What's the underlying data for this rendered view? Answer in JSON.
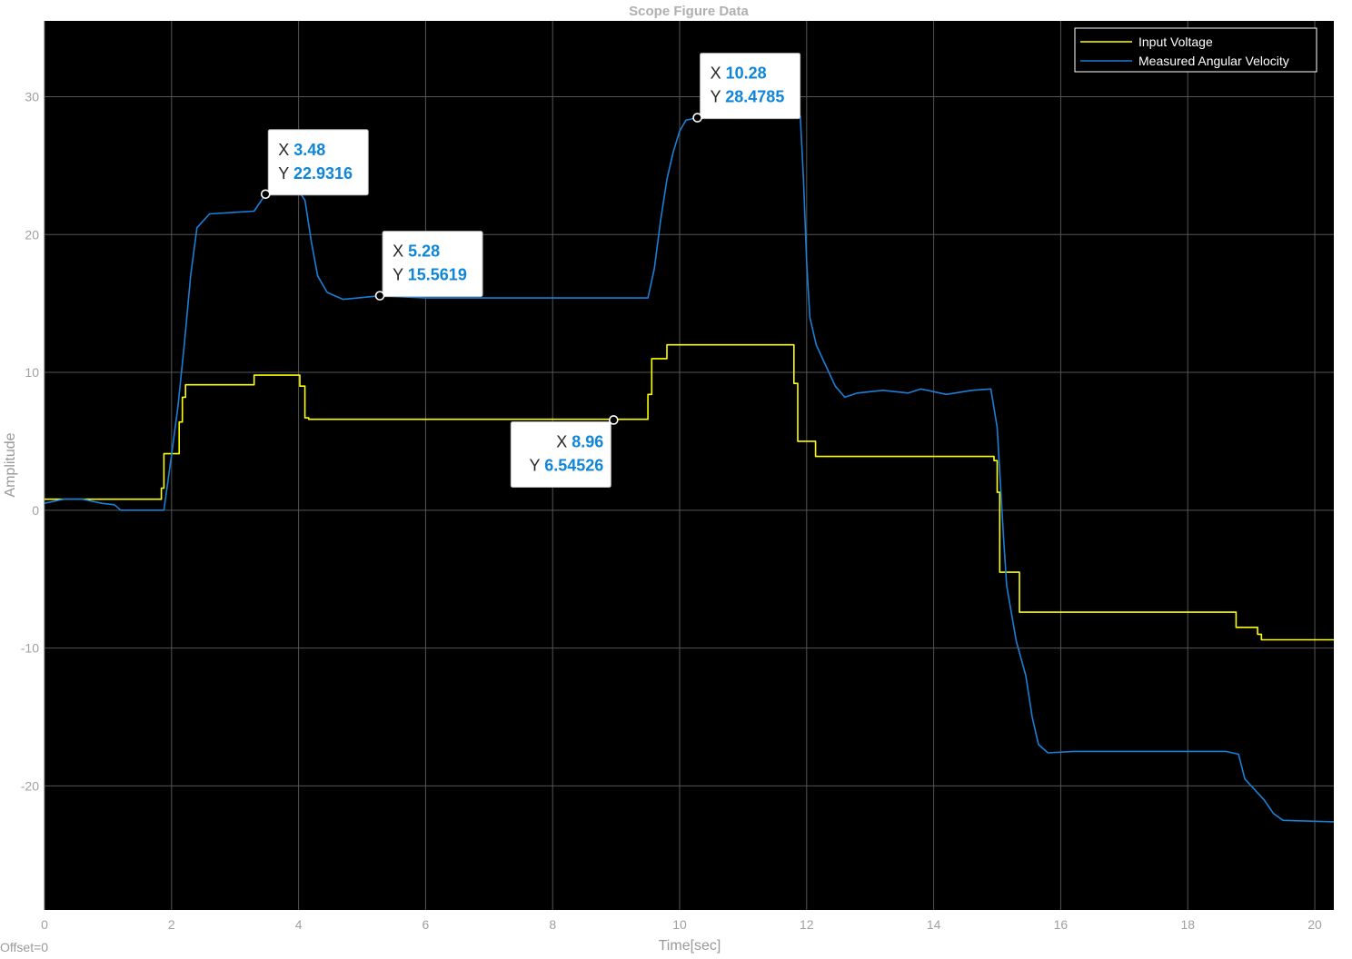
{
  "chart_data": {
    "type": "line",
    "title": "Scope Figure Data",
    "xlabel": "Time[sec]",
    "ylabel": "Amplitude",
    "offset_label": "Offset=0",
    "xlim": [
      0,
      20.3
    ],
    "ylim": [
      -29,
      35.5
    ],
    "xticks": [
      0,
      2,
      4,
      6,
      8,
      10,
      12,
      14,
      16,
      18,
      20
    ],
    "yticks": [
      -20,
      -10,
      0,
      10,
      20,
      30
    ],
    "grid": true,
    "background": "#000000",
    "grid_color": "#555555",
    "legend_position": "top-right",
    "series": [
      {
        "name": "Input Voltage",
        "color": "#ffff00",
        "points": [
          [
            0,
            0.8
          ],
          [
            1.84,
            0.8
          ],
          [
            1.84,
            1.6
          ],
          [
            1.88,
            1.6
          ],
          [
            1.88,
            4.1
          ],
          [
            2.12,
            4.1
          ],
          [
            2.12,
            6.4
          ],
          [
            2.17,
            6.4
          ],
          [
            2.17,
            8.2
          ],
          [
            2.22,
            8.2
          ],
          [
            2.22,
            9.1
          ],
          [
            3.3,
            9.1
          ],
          [
            3.3,
            9.8
          ],
          [
            4.02,
            9.8
          ],
          [
            4.02,
            9.0
          ],
          [
            4.1,
            9.0
          ],
          [
            4.1,
            6.7
          ],
          [
            4.16,
            6.7
          ],
          [
            4.16,
            6.6
          ],
          [
            9.5,
            6.6
          ],
          [
            9.5,
            8.4
          ],
          [
            9.56,
            8.4
          ],
          [
            9.56,
            11.0
          ],
          [
            9.8,
            11.0
          ],
          [
            9.8,
            12.0
          ],
          [
            11.8,
            12.0
          ],
          [
            11.8,
            9.2
          ],
          [
            11.86,
            9.2
          ],
          [
            11.86,
            5.0
          ],
          [
            12.14,
            5.0
          ],
          [
            12.14,
            3.9
          ],
          [
            14.95,
            3.9
          ],
          [
            14.95,
            3.6
          ],
          [
            15.0,
            3.6
          ],
          [
            15.0,
            1.3
          ],
          [
            15.04,
            1.3
          ],
          [
            15.04,
            -4.5
          ],
          [
            15.35,
            -4.5
          ],
          [
            15.35,
            -7.4
          ],
          [
            18.76,
            -7.4
          ],
          [
            18.76,
            -8.5
          ],
          [
            19.1,
            -8.5
          ],
          [
            19.1,
            -9.0
          ],
          [
            19.16,
            -9.0
          ],
          [
            19.16,
            -9.4
          ],
          [
            20.3,
            -9.4
          ]
        ]
      },
      {
        "name": "Measured Angular Velocity",
        "color": "#1a7fd6",
        "points": [
          [
            0,
            0.5
          ],
          [
            0.3,
            0.8
          ],
          [
            0.6,
            0.8
          ],
          [
            0.9,
            0.5
          ],
          [
            1.1,
            0.4
          ],
          [
            1.2,
            0.0
          ],
          [
            1.88,
            0.0
          ],
          [
            2.0,
            4.0
          ],
          [
            2.1,
            7.5
          ],
          [
            2.2,
            12.0
          ],
          [
            2.3,
            17.0
          ],
          [
            2.4,
            20.5
          ],
          [
            2.6,
            21.5
          ],
          [
            3.3,
            21.7
          ],
          [
            3.48,
            22.93
          ],
          [
            3.6,
            23.5
          ],
          [
            3.9,
            23.8
          ],
          [
            4.1,
            22.5
          ],
          [
            4.2,
            19.5
          ],
          [
            4.3,
            17.0
          ],
          [
            4.45,
            15.8
          ],
          [
            4.7,
            15.3
          ],
          [
            5.28,
            15.56
          ],
          [
            6.0,
            15.4
          ],
          [
            9.5,
            15.4
          ],
          [
            9.6,
            17.5
          ],
          [
            9.7,
            21.0
          ],
          [
            9.8,
            24.0
          ],
          [
            9.9,
            26.0
          ],
          [
            10.0,
            27.5
          ],
          [
            10.1,
            28.3
          ],
          [
            10.28,
            28.48
          ],
          [
            11.9,
            28.6
          ],
          [
            11.95,
            24.0
          ],
          [
            12.0,
            18.0
          ],
          [
            12.05,
            14.0
          ],
          [
            12.15,
            12.0
          ],
          [
            12.3,
            10.5
          ],
          [
            12.45,
            9.0
          ],
          [
            12.6,
            8.2
          ],
          [
            12.8,
            8.5
          ],
          [
            13.2,
            8.7
          ],
          [
            13.6,
            8.5
          ],
          [
            13.8,
            8.8
          ],
          [
            14.2,
            8.4
          ],
          [
            14.6,
            8.7
          ],
          [
            14.9,
            8.8
          ],
          [
            15.0,
            6.0
          ],
          [
            15.05,
            2.0
          ],
          [
            15.1,
            -2.0
          ],
          [
            15.15,
            -5.5
          ],
          [
            15.3,
            -9.5
          ],
          [
            15.45,
            -12.0
          ],
          [
            15.55,
            -15.0
          ],
          [
            15.65,
            -17.0
          ],
          [
            15.8,
            -17.6
          ],
          [
            16.2,
            -17.5
          ],
          [
            18.6,
            -17.5
          ],
          [
            18.8,
            -17.7
          ],
          [
            18.9,
            -19.5
          ],
          [
            19.0,
            -20.0
          ],
          [
            19.2,
            -21.0
          ],
          [
            19.35,
            -22.0
          ],
          [
            19.5,
            -22.5
          ],
          [
            20.3,
            -22.6
          ]
        ]
      }
    ],
    "datatips": [
      {
        "x": 3.48,
        "y": 22.9316,
        "x_label": "3.48",
        "y_label": "22.9316",
        "side": "right"
      },
      {
        "x": 5.28,
        "y": 15.5619,
        "x_label": "5.28",
        "y_label": "15.5619",
        "side": "right"
      },
      {
        "x": 8.96,
        "y": 6.54526,
        "x_label": "8.96",
        "y_label": "6.54526",
        "side": "left"
      },
      {
        "x": 10.28,
        "y": 28.4785,
        "x_label": "10.28",
        "y_label": "28.4785",
        "side": "right"
      }
    ]
  }
}
